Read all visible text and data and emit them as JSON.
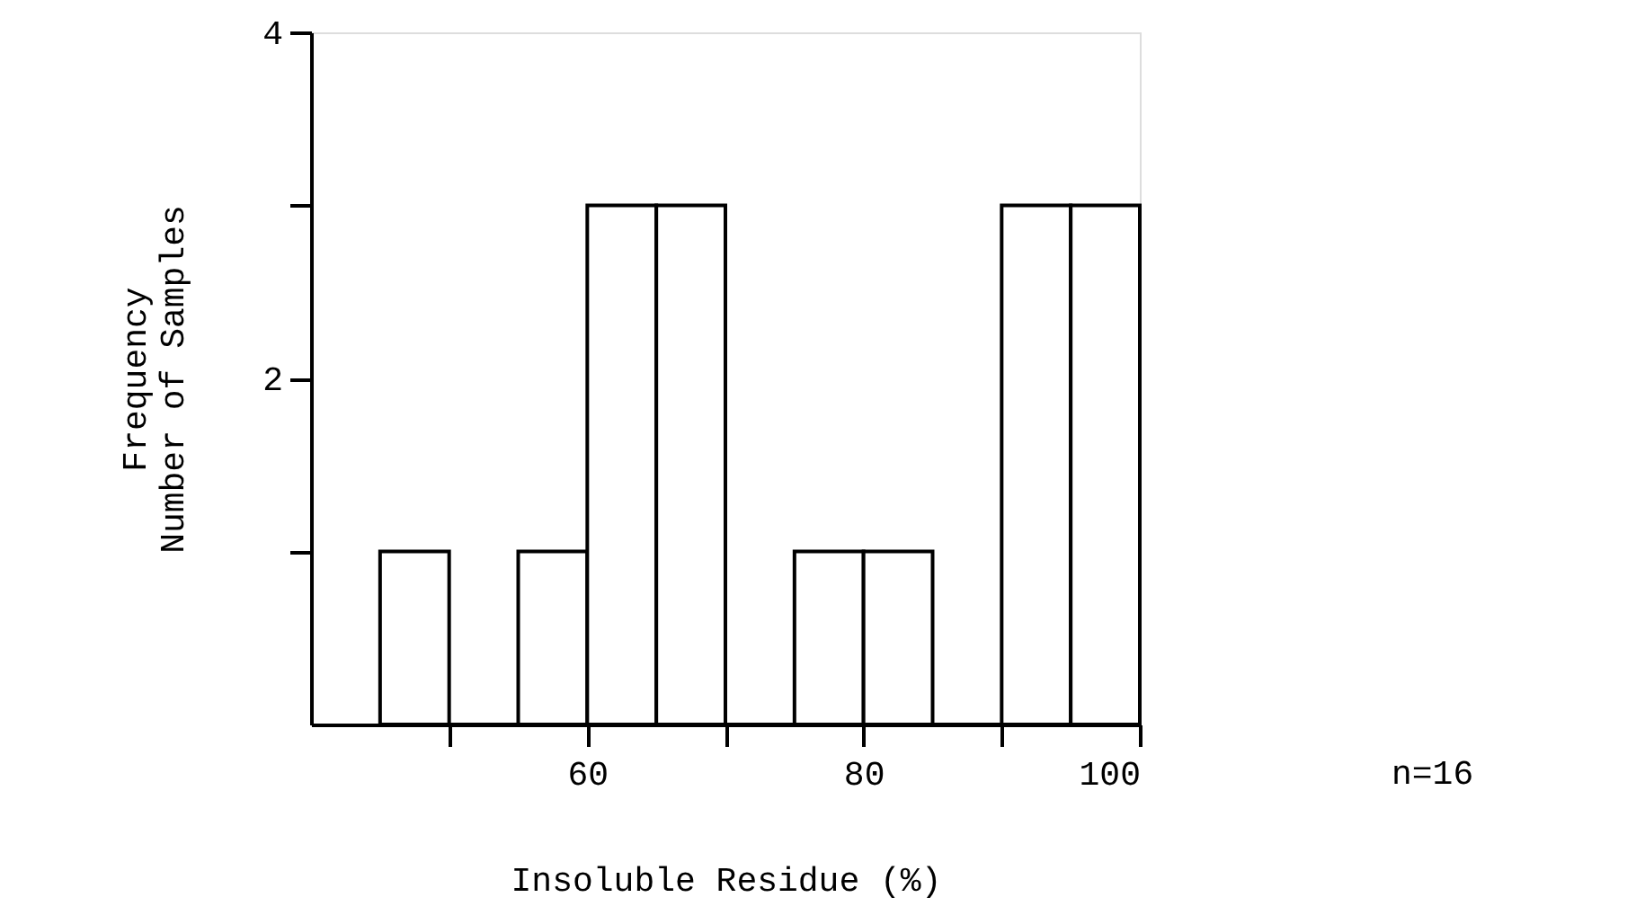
{
  "chart_data": {
    "type": "histogram",
    "xlabel": "Insoluble Residue (%)",
    "ylabel": "Frequency\nNumber of Samples",
    "bins": [
      45,
      50,
      55,
      60,
      65,
      70,
      75,
      80,
      85,
      90,
      95,
      100
    ],
    "values": [
      1,
      0,
      1,
      3,
      3,
      0,
      1,
      1,
      0,
      3,
      3
    ],
    "color": "#ffffff",
    "xlim": [
      40,
      100
    ],
    "xticks": [
      {
        "value": 50,
        "label": null
      },
      60,
      {
        "value": 70,
        "label": null
      },
      80,
      {
        "value": 90,
        "label": null
      },
      100
    ],
    "ylim": [
      0,
      4
    ],
    "yticks": [
      {
        "value": 1,
        "label": null
      },
      2,
      {
        "value": 3,
        "label": null
      },
      4
    ],
    "grid": false,
    "annotations": [
      "n=16"
    ]
  }
}
